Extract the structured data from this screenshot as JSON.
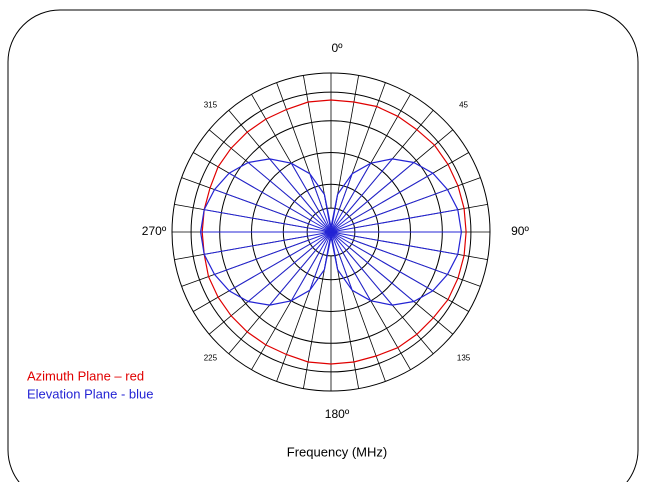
{
  "chart_data": {
    "type": "polar",
    "x_label": "Frequency (MHz)",
    "theta": [
      0,
      10,
      20,
      30,
      40,
      50,
      60,
      70,
      80,
      90,
      100,
      110,
      120,
      130,
      140,
      150,
      160,
      170,
      180,
      190,
      200,
      210,
      220,
      230,
      240,
      250,
      260,
      270,
      280,
      290,
      300,
      310,
      320,
      330,
      340,
      350
    ],
    "thetaticks": [
      {
        "value": 0,
        "label": "0º"
      },
      45,
      {
        "value": 90,
        "label": "90º"
      },
      135,
      {
        "value": 180,
        "label": "180º"
      },
      225,
      {
        "value": 270,
        "label": "270º"
      },
      315
    ],
    "rlim": [
      0,
      1
    ],
    "rticks": [
      0.15,
      0.3,
      0.5,
      0.7,
      0.88,
      1
    ],
    "grid": true,
    "legend": "lower left",
    "series": [
      {
        "name": "Azimuth Plane – red",
        "color": "#e00000",
        "values": [
          0.83,
          0.83,
          0.84,
          0.84,
          0.84,
          0.85,
          0.85,
          0.85,
          0.85,
          0.85,
          0.85,
          0.85,
          0.85,
          0.84,
          0.84,
          0.84,
          0.83,
          0.83,
          0.83,
          0.83,
          0.82,
          0.82,
          0.82,
          0.82,
          0.82,
          0.82,
          0.81,
          0.81,
          0.81,
          0.81,
          0.82,
          0.82,
          0.82,
          0.82,
          0.82,
          0.83
        ]
      },
      {
        "name": "Elevation Plane - blue",
        "color": "#2424d4",
        "values": [
          0.03,
          0.24,
          0.39,
          0.5,
          0.6,
          0.68,
          0.74,
          0.78,
          0.81,
          0.82,
          0.81,
          0.78,
          0.74,
          0.68,
          0.6,
          0.5,
          0.39,
          0.24,
          0.03,
          0.24,
          0.39,
          0.5,
          0.6,
          0.68,
          0.74,
          0.78,
          0.81,
          0.82,
          0.81,
          0.78,
          0.74,
          0.68,
          0.6,
          0.5,
          0.39,
          0.24
        ]
      }
    ]
  }
}
